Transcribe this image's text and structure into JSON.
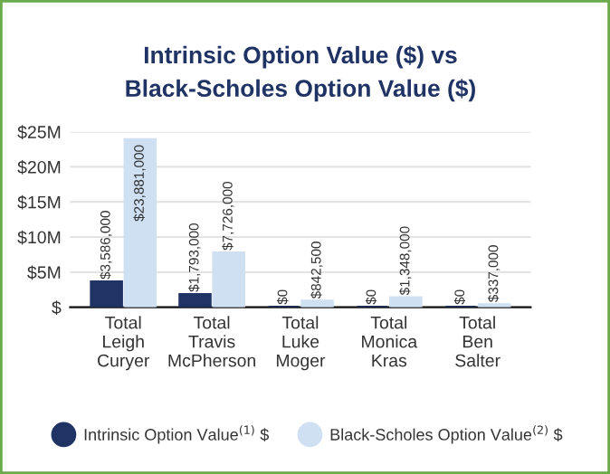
{
  "chart_data": {
    "type": "bar",
    "title": "Intrinsic Option Value ($) vs\nBlack-Scholes Option Value ($)",
    "categories": [
      "Total\nLeigh\nCuryer",
      "Total\nTravis\nMcPherson",
      "Total\nLuke\nMoger",
      "Total\nMonica\nKras",
      "Total\nBen\nSalter"
    ],
    "series": [
      {
        "name": "Intrinsic Option Value$^{(1)}$ $",
        "color": "#1f3364",
        "values": [
          3586000,
          1793000,
          0,
          0,
          0
        ],
        "value_labels": [
          "$3,586,000",
          "$1,793,000",
          "$0",
          "$0",
          "$0"
        ]
      },
      {
        "name": "Black-Scholes Option Value$^{(2)}$ $",
        "color": "#cfe0f3",
        "values": [
          23881000,
          7726000,
          842500,
          1348000,
          337000
        ],
        "value_labels": [
          "$23,881,000",
          "$7,726,000",
          "$842,500",
          "$1,348,000",
          "$337,000"
        ]
      }
    ],
    "ylim": [
      0,
      25000000
    ],
    "yticks": [
      {
        "value": 0,
        "label": "$"
      },
      {
        "value": 5000000,
        "label": "$5M"
      },
      {
        "value": 10000000,
        "label": "$10M"
      },
      {
        "value": 15000000,
        "label": "$15M"
      },
      {
        "value": 20000000,
        "label": "$20M"
      },
      {
        "value": 25000000,
        "label": "$25M"
      }
    ],
    "grid": "y",
    "legend": "bottom"
  }
}
